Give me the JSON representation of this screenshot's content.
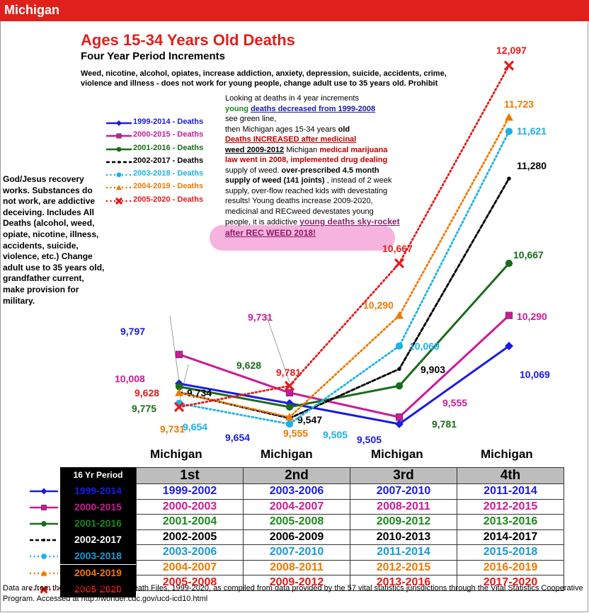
{
  "header": {
    "state": "Michigan"
  },
  "titles": {
    "title": "Ages 15-34 Years Old Deaths",
    "subtitle": "Four Year Period Increments",
    "warning": "Weed, nicotine, alcohol, opiates, increase addiction, anxiety, depression, suicide, accidents, crime, violence and illness - does not work for young people, change adult use to 35 years old.  Prohibit"
  },
  "left_note": "God/Jesus recovery works.  Substances do not work, are addictive deceiving. Includes All Deaths (alcohol, weed, opiate, nicotine, illness, accidents, suicide, violence, etc.)  Change adult use to 35 years old, grandfather current, make provision for military.",
  "annotation": {
    "p1": "Looking at deaths in 4 year increments",
    "p2a": "young",
    "p2b": "deaths decreased from 1999-2008",
    "p3": "see green line,",
    "p4a": "then Michigan ages 15-34 years",
    "p4b": "old",
    "p5": "Deaths INCREASED after medicinal",
    "p6a": "weed 2009-2012",
    "p6b": "Michigan",
    "p6c": "medical",
    "p7": "marijuana law went in 2008, implemented",
    "p8a": "drug dealing",
    "p8b": "supply of weed.",
    "p8c": "over-prescribed 4.5 month supply of weed (141 joints)",
    "p9": ", instead of 2 week supply, over-flow reached kids with devestating results! Young deaths increase 2009-2020, medicinal and RECweed devestates young people, it is addictive",
    "p10": "young deaths sky-rocket after REC WEED  2018!"
  },
  "x_labels": [
    "Michigan",
    "Michigan",
    "Michigan",
    "Michigan"
  ],
  "chart_data": {
    "type": "line",
    "title": "Ages 15-34 Years Old Deaths",
    "subtitle": "Four Year Period Increments",
    "categories": [
      "1st",
      "2nd",
      "3rd",
      "4th"
    ],
    "xlabel": "",
    "ylabel": "",
    "ylim": [
      9400,
      12200
    ],
    "grid": false,
    "legend_position": "top-left",
    "series": [
      {
        "name": "1999-2014 - Deaths",
        "color": "#1a1ae6",
        "dash": "solid",
        "marker": "diamond",
        "values": [
          9797,
          9654,
          9505,
          10069
        ],
        "labels": [
          "9,797",
          "9,654",
          "9,505",
          "10,069"
        ]
      },
      {
        "name": "2000-2015 - Deaths",
        "color": "#cc1a99",
        "dash": "solid",
        "marker": "square",
        "values": [
          10008,
          9731,
          9555,
          10290
        ],
        "labels": [
          "10,008",
          "9,731",
          "9,555",
          "10,290"
        ]
      },
      {
        "name": "2001-2016 - Deaths",
        "color": "#1a6b1a",
        "dash": "solid",
        "marker": "circle",
        "values": [
          9775,
          9628,
          9781,
          10667
        ],
        "labels": [
          "9,775",
          "9,628",
          "9,781",
          "10,667"
        ]
      },
      {
        "name": "2002-2017 - Deaths",
        "color": "#000000",
        "dash": "dashed",
        "marker": "dot",
        "values": [
          9734,
          9547,
          9903,
          11280
        ],
        "labels": [
          "9,734",
          "9,547",
          "9,903",
          "11,280"
        ]
      },
      {
        "name": "2003-2018 - Deaths",
        "color": "#1ab2e6",
        "dash": "dotted",
        "marker": "circle",
        "values": [
          9654,
          9505,
          10069,
          11621
        ],
        "labels": [
          "9,654",
          "9,505",
          "10,069",
          "11,621"
        ]
      },
      {
        "name": "2004-2019 - Deaths",
        "color": "#f07800",
        "dash": "dotted",
        "marker": "triangle",
        "values": [
          9731,
          9555,
          10290,
          11723
        ],
        "labels": [
          "9,731",
          "9,555",
          "10,290",
          "11,723"
        ]
      },
      {
        "name": "2005-2020 - Deaths",
        "color": "#e61a1a",
        "dash": "dotted",
        "marker": "x",
        "values": [
          9628,
          9781,
          10667,
          12097
        ],
        "labels": [
          "9,628",
          "9,781",
          "10,667",
          "12,097"
        ]
      }
    ]
  },
  "period_table": {
    "header_label": "16 Yr Period",
    "columns": [
      "1st",
      "2nd",
      "3rd",
      "4th"
    ],
    "rows": [
      {
        "label": "1999-2014",
        "color": "#1a1ae6",
        "cells": [
          "1999-2002",
          "2003-2006",
          "2007-2010",
          "2011-2014"
        ]
      },
      {
        "label": "2000-2015",
        "color": "#cc1a99",
        "cells": [
          "2000-2003",
          "2004-2007",
          "2008-2011",
          "2012-2015"
        ]
      },
      {
        "label": "2001-2016",
        "color": "#1a8a1a",
        "cells": [
          "2001-2004",
          "2005-2008",
          "2009-2012",
          "2013-2016"
        ]
      },
      {
        "label": "2002-2017",
        "color": "#000000",
        "cells": [
          "2002-2005",
          "2006-2009",
          "2010-2013",
          "2014-2017"
        ]
      },
      {
        "label": "2003-2018",
        "color": "#1a9ad6",
        "cells": [
          "2003-2006",
          "2007-2010",
          "2011-2014",
          "2015-2018"
        ]
      },
      {
        "label": "2004-2019",
        "color": "#f07800",
        "cells": [
          "2004-2007",
          "2008-2011",
          "2012-2015",
          "2016-2019"
        ]
      },
      {
        "label": "2005-2020",
        "color": "#e61a1a",
        "cells": [
          "2005-2008",
          "2009-2012",
          "2013-2016",
          "2017-2020"
        ]
      }
    ]
  },
  "footer": "Data are from the Multiple Cause of Death Files, 1999-2020, as compiled from data provided by the 57 vital statistics jurisdictions through the Vital Statistics Cooperative Program. Accessed at http://wonder.cdc.gov/ucd-icd10.html"
}
